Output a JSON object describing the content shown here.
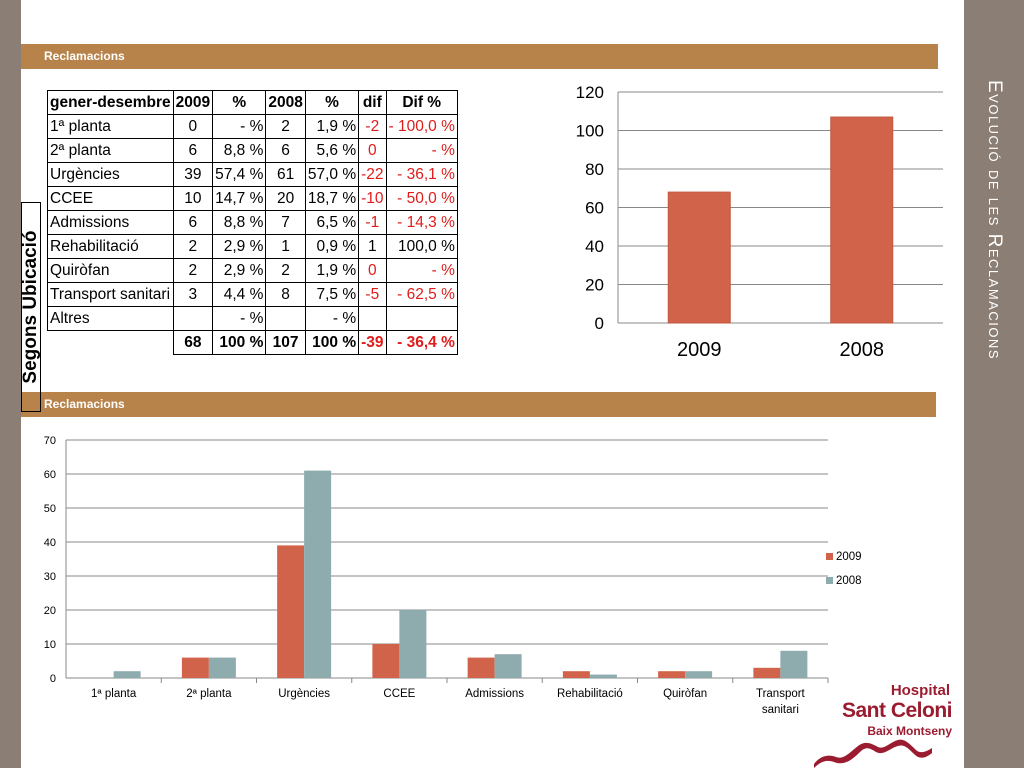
{
  "side_title": "Evolució de les Reclamacions",
  "band_top": "Reclamacions",
  "band_bottom": "Reclamacions",
  "table": {
    "side_label": "Segons Ubicació",
    "header": [
      "gener-desembre",
      "2009",
      "%",
      "2008",
      "%",
      "dif",
      "Dif %"
    ],
    "rows": [
      [
        "1ª planta",
        "0",
        "-   %",
        "2",
        "1,9 %",
        "-2",
        "- 100,0 %"
      ],
      [
        "2ª planta",
        "6",
        "8,8 %",
        "6",
        "5,6 %",
        "0",
        "-   %"
      ],
      [
        "Urgències",
        "39",
        "57,4 %",
        "61",
        "57,0 %",
        "-22",
        "-   36,1 %"
      ],
      [
        "CCEE",
        "10",
        "14,7 %",
        "20",
        "18,7 %",
        "-10",
        "-   50,0 %"
      ],
      [
        "Admissions",
        "6",
        "8,8 %",
        "7",
        "6,5 %",
        "-1",
        "-   14,3 %"
      ],
      [
        "Rehabilitació",
        "2",
        "2,9 %",
        "1",
        "0,9 %",
        "1",
        "100,0 %"
      ],
      [
        "Quiròfan",
        "2",
        "2,9 %",
        "2",
        "1,9 %",
        "0",
        "-   %"
      ],
      [
        "Transport sanitari",
        "3",
        "4,4 %",
        "8",
        "7,5 %",
        "-5",
        "-   62,5 %"
      ],
      [
        "Altres",
        "",
        "-   %",
        "",
        "-   %",
        "",
        ""
      ]
    ],
    "total": [
      "",
      "68",
      "100 %",
      "107",
      "100 %",
      "-39",
      "-   36,4 %"
    ],
    "red_rows": [
      0,
      1,
      2,
      3,
      4,
      6,
      7
    ]
  },
  "logo": {
    "line1": "Hospital",
    "line2": "Sant Celoni",
    "line3": "Baix Montseny"
  },
  "colors": {
    "series_2009": "#d2634b",
    "series_2008": "#8eacad",
    "band": "#b8834a",
    "strip": "#8b7e74",
    "logo_red": "#9b1b30"
  },
  "chart_data": [
    {
      "type": "bar",
      "title": "",
      "categories": [
        "2009",
        "2008"
      ],
      "values": [
        68,
        107
      ],
      "ylim": [
        0,
        120
      ],
      "yticks": [
        0,
        20,
        40,
        60,
        80,
        100,
        120
      ],
      "grid": true
    },
    {
      "type": "bar",
      "title": "",
      "categories": [
        "1ª planta",
        "2ª planta",
        "Urgències",
        "CCEE",
        "Admissions",
        "Rehabilitació",
        "Quiròfan",
        "Transport sanitari"
      ],
      "series": [
        {
          "name": "2009",
          "values": [
            0,
            6,
            39,
            10,
            6,
            2,
            2,
            3
          ]
        },
        {
          "name": "2008",
          "values": [
            2,
            6,
            61,
            20,
            7,
            1,
            2,
            8
          ]
        }
      ],
      "ylim": [
        0,
        70
      ],
      "yticks": [
        0,
        10,
        20,
        30,
        40,
        50,
        60,
        70
      ],
      "grid": true,
      "legend": "right"
    }
  ]
}
